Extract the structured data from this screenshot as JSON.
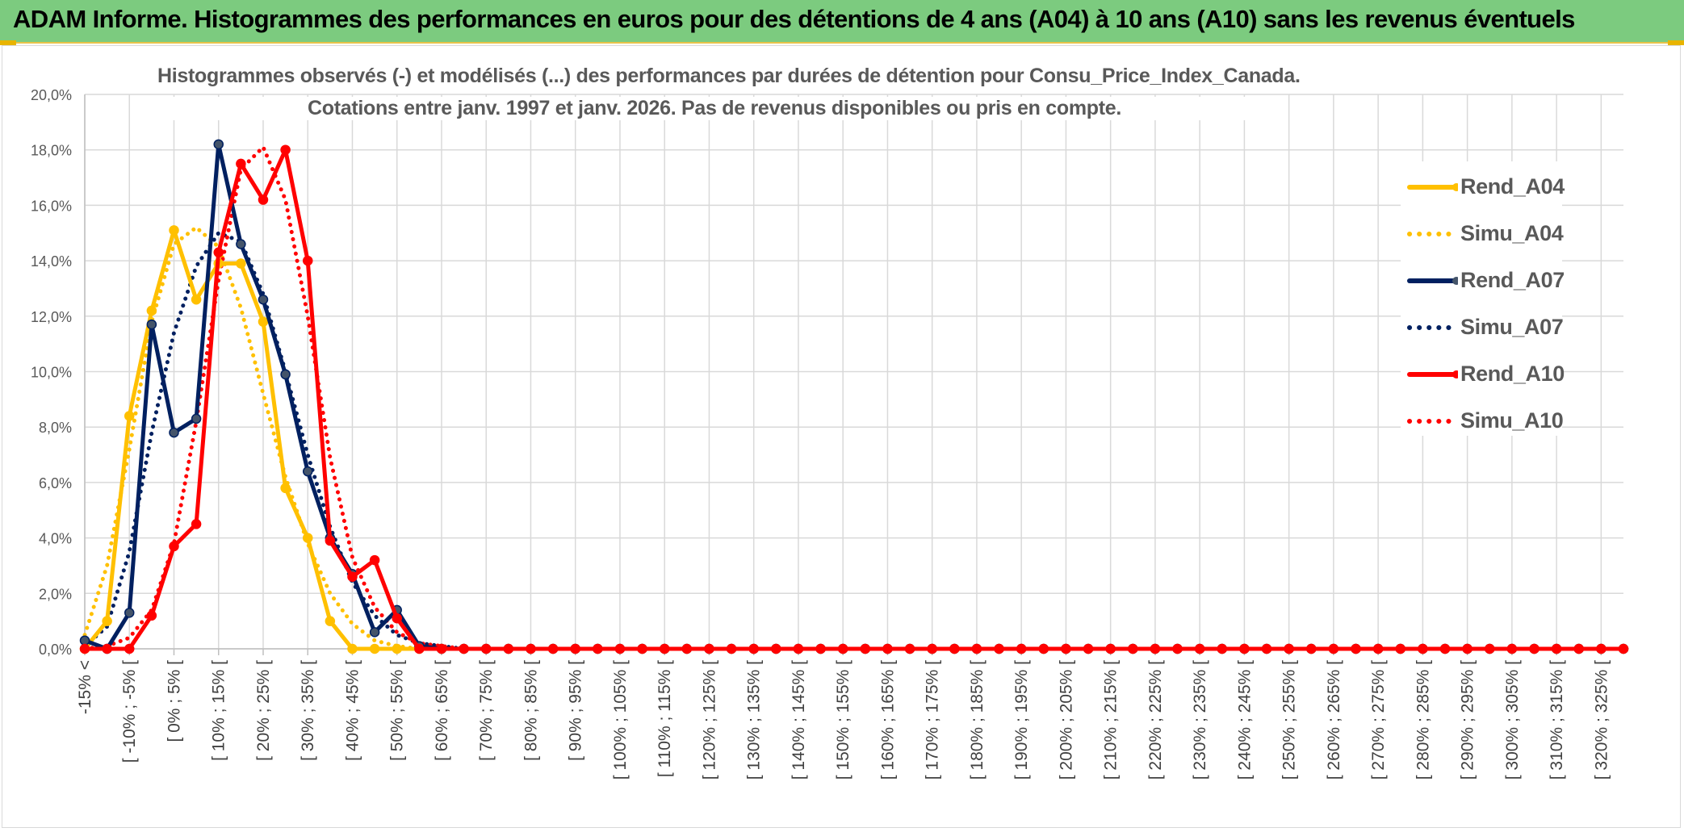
{
  "header": {
    "title": "ADAM Informe. Histogrammes des performances en euros pour des détentions de 4 ans (A04) à 10 ans (A10) sans les revenus éventuels"
  },
  "chart_data": {
    "type": "line",
    "title": "Histogrammes observés (-) et modélisés (...) des performances par durées de détention pour Consu_Price_Index_Canada.",
    "subtitle": "Cotations entre janv. 1997 et janv. 2026. Pas de revenus disponibles ou pris en compte.",
    "y_ticks": [
      "0,0%",
      "2,0%",
      "4,0%",
      "6,0%",
      "8,0%",
      "10,0%",
      "12,0%",
      "14,0%",
      "16,0%",
      "18,0%",
      "20,0%"
    ],
    "ylim": [
      0,
      20
    ],
    "x_ticks": [
      "-15% <",
      "[ -10% ; -5% [",
      "[ 0% ; 5% [",
      "[ 10% ; 15% [",
      "[ 20% ; 25% [",
      "[ 30% ; 35% [",
      "[ 40% ; 45% [",
      "[ 50% ; 55% [",
      "[ 60% ; 65% [",
      "[ 70% ; 75% [",
      "[ 80% ; 85% [",
      "[ 90% ; 95% [",
      "[ 100% ; 105% [",
      "[ 110% ; 115% [",
      "[ 120% ; 125% [",
      "[ 130% ; 135% [",
      "[ 140% ; 145% [",
      "[ 150% ; 155% [",
      "[ 160% ; 165% [",
      "[ 170% ; 175% [",
      "[ 180% ; 185% [",
      "[ 190% ; 195% [",
      "[ 200% ; 205% [",
      "[ 210% ; 215% [",
      "[ 220% ; 225% [",
      "[ 230% ; 235% [",
      "[ 240% ; 245% [",
      "[ 250% ; 255% [",
      "[ 260% ; 265% [",
      "[ 270% ; 275% [",
      "[ 280% ; 285% [",
      "[ 290% ; 295% [",
      "[ 300% ; 305% [",
      "[ 310% ; 315% [",
      "[ 320% ; 325% ["
    ],
    "n_points": 70,
    "grid": true,
    "legend_position": "right",
    "series": [
      {
        "name": "Rend_A04",
        "color": "#FFC000",
        "style": "solid",
        "values": [
          0.0,
          1.0,
          8.4,
          12.2,
          15.1,
          12.6,
          13.9,
          13.9,
          11.8,
          5.8,
          4.0,
          1.0,
          0.0,
          0.0,
          0.0,
          0.0,
          0.0,
          0.0,
          0.0,
          0.0,
          0.0,
          0.0,
          0.0,
          0.0,
          0.0,
          0.0,
          0.0,
          0.0,
          0.0,
          0.0,
          0.0,
          0.0,
          0.0,
          0.0,
          0.0,
          0.0,
          0.0,
          0.0,
          0.0,
          0.0,
          0.0,
          0.0,
          0.0,
          0.0,
          0.0,
          0.0,
          0.0,
          0.0,
          0.0,
          0.0,
          0.0,
          0.0,
          0.0,
          0.0,
          0.0,
          0.0,
          0.0,
          0.0,
          0.0,
          0.0,
          0.0,
          0.0,
          0.0,
          0.0,
          0.0,
          0.0,
          0.0,
          0.0,
          0.0,
          0.0
        ]
      },
      {
        "name": "Simu_A04",
        "color": "#FFC000",
        "style": "dotted",
        "values": [
          0.5,
          3.0,
          7.2,
          11.8,
          14.6,
          15.2,
          14.5,
          12.3,
          9.2,
          6.2,
          3.8,
          2.0,
          0.9,
          0.3,
          0.1,
          0.0,
          0.0,
          0.0,
          0.0,
          0.0,
          0.0,
          0.0,
          0.0,
          0.0,
          0.0,
          0.0,
          0.0,
          0.0,
          0.0,
          0.0,
          0.0,
          0.0,
          0.0,
          0.0,
          0.0,
          0.0,
          0.0,
          0.0,
          0.0,
          0.0,
          0.0,
          0.0,
          0.0,
          0.0,
          0.0,
          0.0,
          0.0,
          0.0,
          0.0,
          0.0,
          0.0,
          0.0,
          0.0,
          0.0,
          0.0,
          0.0,
          0.0,
          0.0,
          0.0,
          0.0,
          0.0,
          0.0,
          0.0,
          0.0,
          0.0,
          0.0,
          0.0,
          0.0,
          0.0,
          0.0
        ]
      },
      {
        "name": "Rend_A07",
        "color": "#002060",
        "style": "solid",
        "values": [
          0.3,
          0.0,
          1.3,
          11.7,
          7.8,
          8.3,
          18.2,
          14.6,
          12.6,
          9.9,
          6.4,
          4.0,
          2.7,
          0.6,
          1.4,
          0.1,
          0.0,
          0.0,
          0.0,
          0.0,
          0.0,
          0.0,
          0.0,
          0.0,
          0.0,
          0.0,
          0.0,
          0.0,
          0.0,
          0.0,
          0.0,
          0.0,
          0.0,
          0.0,
          0.0,
          0.0,
          0.0,
          0.0,
          0.0,
          0.0,
          0.0,
          0.0,
          0.0,
          0.0,
          0.0,
          0.0,
          0.0,
          0.0,
          0.0,
          0.0,
          0.0,
          0.0,
          0.0,
          0.0,
          0.0,
          0.0,
          0.0,
          0.0,
          0.0,
          0.0,
          0.0,
          0.0,
          0.0,
          0.0,
          0.0,
          0.0,
          0.0,
          0.0,
          0.0,
          0.0
        ]
      },
      {
        "name": "Simu_A07",
        "color": "#002060",
        "style": "dotted",
        "values": [
          0.1,
          0.8,
          3.5,
          7.8,
          11.4,
          13.8,
          15.0,
          14.7,
          12.8,
          10.0,
          7.0,
          4.4,
          2.4,
          1.2,
          0.5,
          0.2,
          0.1,
          0.0,
          0.0,
          0.0,
          0.0,
          0.0,
          0.0,
          0.0,
          0.0,
          0.0,
          0.0,
          0.0,
          0.0,
          0.0,
          0.0,
          0.0,
          0.0,
          0.0,
          0.0,
          0.0,
          0.0,
          0.0,
          0.0,
          0.0,
          0.0,
          0.0,
          0.0,
          0.0,
          0.0,
          0.0,
          0.0,
          0.0,
          0.0,
          0.0,
          0.0,
          0.0,
          0.0,
          0.0,
          0.0,
          0.0,
          0.0,
          0.0,
          0.0,
          0.0,
          0.0,
          0.0,
          0.0,
          0.0,
          0.0,
          0.0,
          0.0,
          0.0,
          0.0,
          0.0
        ]
      },
      {
        "name": "Rend_A10",
        "color": "#FF0000",
        "style": "solid",
        "values": [
          0.0,
          0.0,
          0.0,
          1.2,
          3.7,
          4.5,
          14.3,
          17.5,
          16.2,
          18.0,
          14.0,
          3.9,
          2.6,
          3.2,
          1.1,
          0.0,
          0.0,
          0.0,
          0.0,
          0.0,
          0.0,
          0.0,
          0.0,
          0.0,
          0.0,
          0.0,
          0.0,
          0.0,
          0.0,
          0.0,
          0.0,
          0.0,
          0.0,
          0.0,
          0.0,
          0.0,
          0.0,
          0.0,
          0.0,
          0.0,
          0.0,
          0.0,
          0.0,
          0.0,
          0.0,
          0.0,
          0.0,
          0.0,
          0.0,
          0.0,
          0.0,
          0.0,
          0.0,
          0.0,
          0.0,
          0.0,
          0.0,
          0.0,
          0.0,
          0.0,
          0.0,
          0.0,
          0.0,
          0.0,
          0.0,
          0.0,
          0.0,
          0.0,
          0.0,
          0.0
        ]
      },
      {
        "name": "Simu_A10",
        "color": "#FF0000",
        "style": "dotted",
        "values": [
          0.0,
          0.1,
          0.4,
          1.4,
          3.8,
          8.2,
          13.3,
          17.3,
          18.1,
          16.2,
          12.0,
          6.9,
          3.3,
          1.5,
          0.6,
          0.2,
          0.1,
          0.0,
          0.0,
          0.0,
          0.0,
          0.0,
          0.0,
          0.0,
          0.0,
          0.0,
          0.0,
          0.0,
          0.0,
          0.0,
          0.0,
          0.0,
          0.0,
          0.0,
          0.0,
          0.0,
          0.0,
          0.0,
          0.0,
          0.0,
          0.0,
          0.0,
          0.0,
          0.0,
          0.0,
          0.0,
          0.0,
          0.0,
          0.0,
          0.0,
          0.0,
          0.0,
          0.0,
          0.0,
          0.0,
          0.0,
          0.0,
          0.0,
          0.0,
          0.0,
          0.0,
          0.0,
          0.0,
          0.0,
          0.0,
          0.0,
          0.0,
          0.0,
          0.0,
          0.0
        ]
      }
    ]
  }
}
